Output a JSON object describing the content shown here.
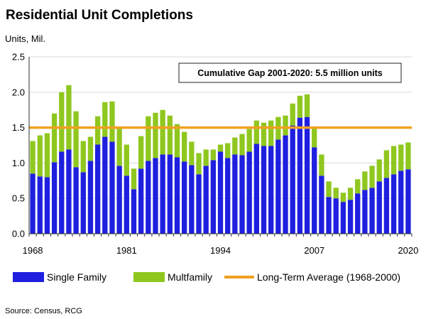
{
  "chart_data": {
    "type": "bar",
    "title": "Residential Unit Completions",
    "ylabel": "Units, Mil.",
    "ylim": [
      0,
      2.5
    ],
    "yticks": [
      "0.0",
      "0.5",
      "1.0",
      "1.5",
      "2.0",
      "2.5"
    ],
    "xticks": [
      "1968",
      "1981",
      "1994",
      "2007",
      "2020"
    ],
    "stacked": true,
    "grid": "horizontal",
    "categories": [
      1968,
      1969,
      1970,
      1971,
      1972,
      1973,
      1974,
      1975,
      1976,
      1977,
      1978,
      1979,
      1980,
      1981,
      1982,
      1983,
      1984,
      1985,
      1986,
      1987,
      1988,
      1989,
      1990,
      1991,
      1992,
      1993,
      1994,
      1995,
      1996,
      1997,
      1998,
      1999,
      2000,
      2001,
      2002,
      2003,
      2004,
      2005,
      2006,
      2007,
      2008,
      2009,
      2010,
      2011,
      2012,
      2013,
      2014,
      2015,
      2016,
      2017,
      2018,
      2019,
      2020
    ],
    "series": [
      {
        "name": "Single Family",
        "color": "#1f1fe0",
        "values": [
          0.85,
          0.81,
          0.8,
          1.01,
          1.16,
          1.19,
          0.94,
          0.87,
          1.03,
          1.26,
          1.37,
          1.3,
          0.96,
          0.82,
          0.63,
          0.92,
          1.03,
          1.07,
          1.12,
          1.12,
          1.08,
          1.02,
          0.97,
          0.84,
          0.96,
          1.04,
          1.16,
          1.07,
          1.12,
          1.11,
          1.16,
          1.27,
          1.24,
          1.24,
          1.33,
          1.39,
          1.53,
          1.64,
          1.65,
          1.22,
          0.82,
          0.52,
          0.5,
          0.45,
          0.48,
          0.57,
          0.62,
          0.65,
          0.74,
          0.79,
          0.84,
          0.89,
          0.91
        ]
      },
      {
        "name": "Multfamily",
        "color": "#8fc71f",
        "values": [
          0.46,
          0.58,
          0.62,
          0.69,
          0.84,
          0.91,
          0.79,
          0.44,
          0.34,
          0.4,
          0.49,
          0.57,
          0.54,
          0.44,
          0.29,
          0.46,
          0.63,
          0.64,
          0.63,
          0.55,
          0.47,
          0.42,
          0.33,
          0.3,
          0.23,
          0.15,
          0.1,
          0.21,
          0.24,
          0.3,
          0.32,
          0.33,
          0.33,
          0.36,
          0.32,
          0.28,
          0.31,
          0.31,
          0.32,
          0.28,
          0.3,
          0.22,
          0.15,
          0.13,
          0.17,
          0.2,
          0.26,
          0.31,
          0.31,
          0.39,
          0.4,
          0.37,
          0.38
        ]
      }
    ],
    "reference_line": {
      "label": "Long-Term Average (1968-2000)",
      "value": 1.5,
      "color": "#f0a020"
    },
    "annotation": "Cumulative Gap 2001-2020: 5.5 million units",
    "legend": {
      "placement": "bottom"
    },
    "source": "Source: Census, RCG"
  }
}
